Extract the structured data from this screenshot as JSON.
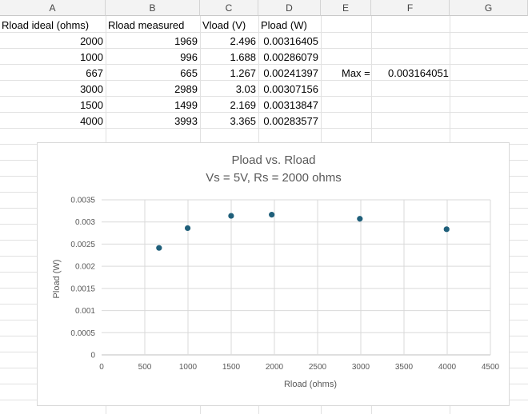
{
  "columns": [
    "A",
    "B",
    "C",
    "D",
    "E",
    "F",
    "G"
  ],
  "headers": {
    "a1": "Rload ideal (ohms)",
    "b1": "Rload measured",
    "c1": "Vload (V)",
    "d1": "Pload (W)"
  },
  "rows": [
    {
      "a": "2000",
      "b": "1969",
      "c": "2.496",
      "d": "0.00316405"
    },
    {
      "a": "1000",
      "b": "996",
      "c": "1.688",
      "d": "0.00286079"
    },
    {
      "a": "667",
      "b": "665",
      "c": "1.267",
      "d": "0.00241397"
    },
    {
      "a": "3000",
      "b": "2989",
      "c": "3.03",
      "d": "0.00307156"
    },
    {
      "a": "1500",
      "b": "1499",
      "c": "2.169",
      "d": "0.00313847"
    },
    {
      "a": "4000",
      "b": "3993",
      "c": "3.365",
      "d": "0.00283577"
    }
  ],
  "max": {
    "label": "Max =",
    "value": "0.003164051"
  },
  "chart_data": {
    "type": "scatter",
    "title": "Pload vs. Rload",
    "subtitle": "Vs = 5V, Rs = 2000 ohms",
    "xlabel": "Rload (ohms)",
    "ylabel": "Pload (W)",
    "xlim": [
      0,
      4500
    ],
    "ylim": [
      0,
      0.0035
    ],
    "x_ticks": [
      "0",
      "500",
      "1000",
      "1500",
      "2000",
      "2500",
      "3000",
      "3500",
      "4000",
      "4500"
    ],
    "y_ticks": [
      "0",
      "0.0005",
      "0.001",
      "0.0015",
      "0.002",
      "0.0025",
      "0.003",
      "0.0035"
    ],
    "grid": true,
    "color": "#1f5f7a",
    "points": [
      {
        "x": 1969,
        "y": 0.00316405
      },
      {
        "x": 996,
        "y": 0.00286079
      },
      {
        "x": 665,
        "y": 0.00241397
      },
      {
        "x": 2989,
        "y": 0.00307156
      },
      {
        "x": 1499,
        "y": 0.00313847
      },
      {
        "x": 3993,
        "y": 0.00283577
      }
    ]
  }
}
